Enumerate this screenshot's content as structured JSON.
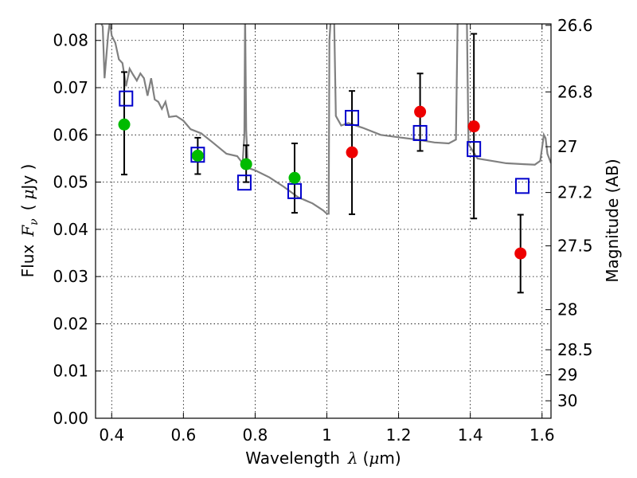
{
  "chart_data": {
    "type": "scatter",
    "xlabel": {
      "prefix": "Wavelength",
      "symbol": "λ",
      "unit_open": "(",
      "unit_mu": "μ",
      "unit_rest": "m)"
    },
    "ylabel": {
      "prefix": "Flux",
      "symbol": "F",
      "subscript": "ν",
      "unit_open": "(",
      "unit_mu": "μ",
      "unit_rest": "Jy )"
    },
    "y2label": "Magnitude (AB)",
    "xlim": [
      0.355,
      1.625
    ],
    "ylim": [
      0.0,
      0.0835
    ],
    "grid": true,
    "x_ticks": [
      {
        "value": 0.4,
        "label": "0.4"
      },
      {
        "value": 0.6,
        "label": "0.6"
      },
      {
        "value": 0.8,
        "label": "0.8"
      },
      {
        "value": 1.0,
        "label": "1"
      },
      {
        "value": 1.2,
        "label": "1.2"
      },
      {
        "value": 1.4,
        "label": "1.4"
      },
      {
        "value": 1.6,
        "label": "1.6"
      }
    ],
    "y_ticks": [
      {
        "value": 0.0,
        "label": "0.00"
      },
      {
        "value": 0.01,
        "label": "0.01"
      },
      {
        "value": 0.02,
        "label": "0.02"
      },
      {
        "value": 0.03,
        "label": "0.03"
      },
      {
        "value": 0.04,
        "label": "0.04"
      },
      {
        "value": 0.05,
        "label": "0.05"
      },
      {
        "value": 0.06,
        "label": "0.06"
      },
      {
        "value": 0.07,
        "label": "0.07"
      },
      {
        "value": 0.08,
        "label": "0.08"
      }
    ],
    "y2_ticks": [
      {
        "flux": 0.0832,
        "label": "26.6"
      },
      {
        "flux": 0.0691,
        "label": "26.8"
      },
      {
        "flux": 0.0575,
        "label": "27"
      },
      {
        "flux": 0.0478,
        "label": "27.2"
      },
      {
        "flux": 0.0365,
        "label": "27.5"
      },
      {
        "flux": 0.023,
        "label": "28"
      },
      {
        "flux": 0.0145,
        "label": "28.5"
      },
      {
        "flux": 0.0092,
        "label": "29"
      },
      {
        "flux": 0.0037,
        "label": "30"
      }
    ],
    "colors": {
      "model_sed": "#808080",
      "green_points": "#00bb00",
      "red_points": "#ee0000",
      "model_squares": "#0000cc",
      "error_bars": "#000000"
    },
    "series": [
      {
        "marker": "square",
        "points": [
          {
            "x": 0.44,
            "y": 0.0677
          },
          {
            "x": 0.64,
            "y": 0.0558
          },
          {
            "x": 0.77,
            "y": 0.0499
          },
          {
            "x": 0.91,
            "y": 0.0481
          },
          {
            "x": 1.07,
            "y": 0.0636
          },
          {
            "x": 1.26,
            "y": 0.0604
          },
          {
            "x": 1.41,
            "y": 0.057
          },
          {
            "x": 1.545,
            "y": 0.0492
          }
        ]
      },
      {
        "marker": "circle-green",
        "points": [
          {
            "x": 0.435,
            "y": 0.0622,
            "ylo": 0.0516,
            "yhi": 0.0733
          },
          {
            "x": 0.64,
            "y": 0.0556,
            "ylo": 0.0517,
            "yhi": 0.0594
          },
          {
            "x": 0.775,
            "y": 0.0538,
            "ylo": 0.05,
            "yhi": 0.0578
          },
          {
            "x": 0.91,
            "y": 0.0509,
            "ylo": 0.0435,
            "yhi": 0.0582
          }
        ]
      },
      {
        "marker": "circle-red",
        "points": [
          {
            "x": 1.07,
            "y": 0.0563,
            "ylo": 0.0432,
            "yhi": 0.0693
          },
          {
            "x": 1.26,
            "y": 0.0649,
            "ylo": 0.0566,
            "yhi": 0.073
          },
          {
            "x": 1.41,
            "y": 0.0618,
            "ylo": 0.0423,
            "yhi": 0.0814
          },
          {
            "x": 1.54,
            "y": 0.0349,
            "ylo": 0.0266,
            "yhi": 0.0431
          }
        ]
      },
      {
        "marker": "line",
        "points": [
          {
            "x": 0.36,
            "y": 0.085
          },
          {
            "x": 0.375,
            "y": 0.083
          },
          {
            "x": 0.38,
            "y": 0.072
          },
          {
            "x": 0.39,
            "y": 0.0812
          },
          {
            "x": 0.395,
            "y": 0.084
          },
          {
            "x": 0.4,
            "y": 0.081
          },
          {
            "x": 0.41,
            "y": 0.0795
          },
          {
            "x": 0.42,
            "y": 0.076
          },
          {
            "x": 0.43,
            "y": 0.0752
          },
          {
            "x": 0.44,
            "y": 0.0703
          },
          {
            "x": 0.45,
            "y": 0.074
          },
          {
            "x": 0.46,
            "y": 0.0727
          },
          {
            "x": 0.47,
            "y": 0.0715
          },
          {
            "x": 0.48,
            "y": 0.073
          },
          {
            "x": 0.49,
            "y": 0.072
          },
          {
            "x": 0.5,
            "y": 0.0683
          },
          {
            "x": 0.51,
            "y": 0.072
          },
          {
            "x": 0.52,
            "y": 0.0675
          },
          {
            "x": 0.53,
            "y": 0.067
          },
          {
            "x": 0.54,
            "y": 0.0655
          },
          {
            "x": 0.55,
            "y": 0.067
          },
          {
            "x": 0.56,
            "y": 0.0638
          },
          {
            "x": 0.58,
            "y": 0.064
          },
          {
            "x": 0.6,
            "y": 0.063
          },
          {
            "x": 0.62,
            "y": 0.0612
          },
          {
            "x": 0.65,
            "y": 0.0603
          },
          {
            "x": 0.68,
            "y": 0.0585
          },
          {
            "x": 0.72,
            "y": 0.056
          },
          {
            "x": 0.75,
            "y": 0.0555
          },
          {
            "x": 0.765,
            "y": 0.054
          },
          {
            "x": 0.77,
            "y": 0.06
          },
          {
            "x": 0.772,
            "y": 0.086
          },
          {
            "x": 0.775,
            "y": 0.061
          },
          {
            "x": 0.78,
            "y": 0.053
          },
          {
            "x": 0.8,
            "y": 0.0525
          },
          {
            "x": 0.84,
            "y": 0.051
          },
          {
            "x": 0.88,
            "y": 0.049
          },
          {
            "x": 0.92,
            "y": 0.0468
          },
          {
            "x": 0.96,
            "y": 0.0455
          },
          {
            "x": 0.98,
            "y": 0.0445
          },
          {
            "x": 0.99,
            "y": 0.044
          },
          {
            "x": 1.0,
            "y": 0.0433
          },
          {
            "x": 1.005,
            "y": 0.0433
          },
          {
            "x": 1.007,
            "y": 0.08
          },
          {
            "x": 1.012,
            "y": 0.086
          },
          {
            "x": 1.02,
            "y": 0.086
          },
          {
            "x": 1.025,
            "y": 0.064
          },
          {
            "x": 1.04,
            "y": 0.062
          },
          {
            "x": 1.06,
            "y": 0.0625
          },
          {
            "x": 1.1,
            "y": 0.0615
          },
          {
            "x": 1.15,
            "y": 0.06
          },
          {
            "x": 1.2,
            "y": 0.0595
          },
          {
            "x": 1.25,
            "y": 0.059
          },
          {
            "x": 1.3,
            "y": 0.0584
          },
          {
            "x": 1.34,
            "y": 0.0582
          },
          {
            "x": 1.36,
            "y": 0.059
          },
          {
            "x": 1.365,
            "y": 0.086
          },
          {
            "x": 1.39,
            "y": 0.086
          },
          {
            "x": 1.395,
            "y": 0.058
          },
          {
            "x": 1.42,
            "y": 0.055
          },
          {
            "x": 1.46,
            "y": 0.0545
          },
          {
            "x": 1.5,
            "y": 0.054
          },
          {
            "x": 1.55,
            "y": 0.0538
          },
          {
            "x": 1.58,
            "y": 0.0537
          },
          {
            "x": 1.595,
            "y": 0.0545
          },
          {
            "x": 1.605,
            "y": 0.06
          },
          {
            "x": 1.61,
            "y": 0.0593
          },
          {
            "x": 1.615,
            "y": 0.056
          },
          {
            "x": 1.625,
            "y": 0.054
          }
        ]
      }
    ]
  }
}
